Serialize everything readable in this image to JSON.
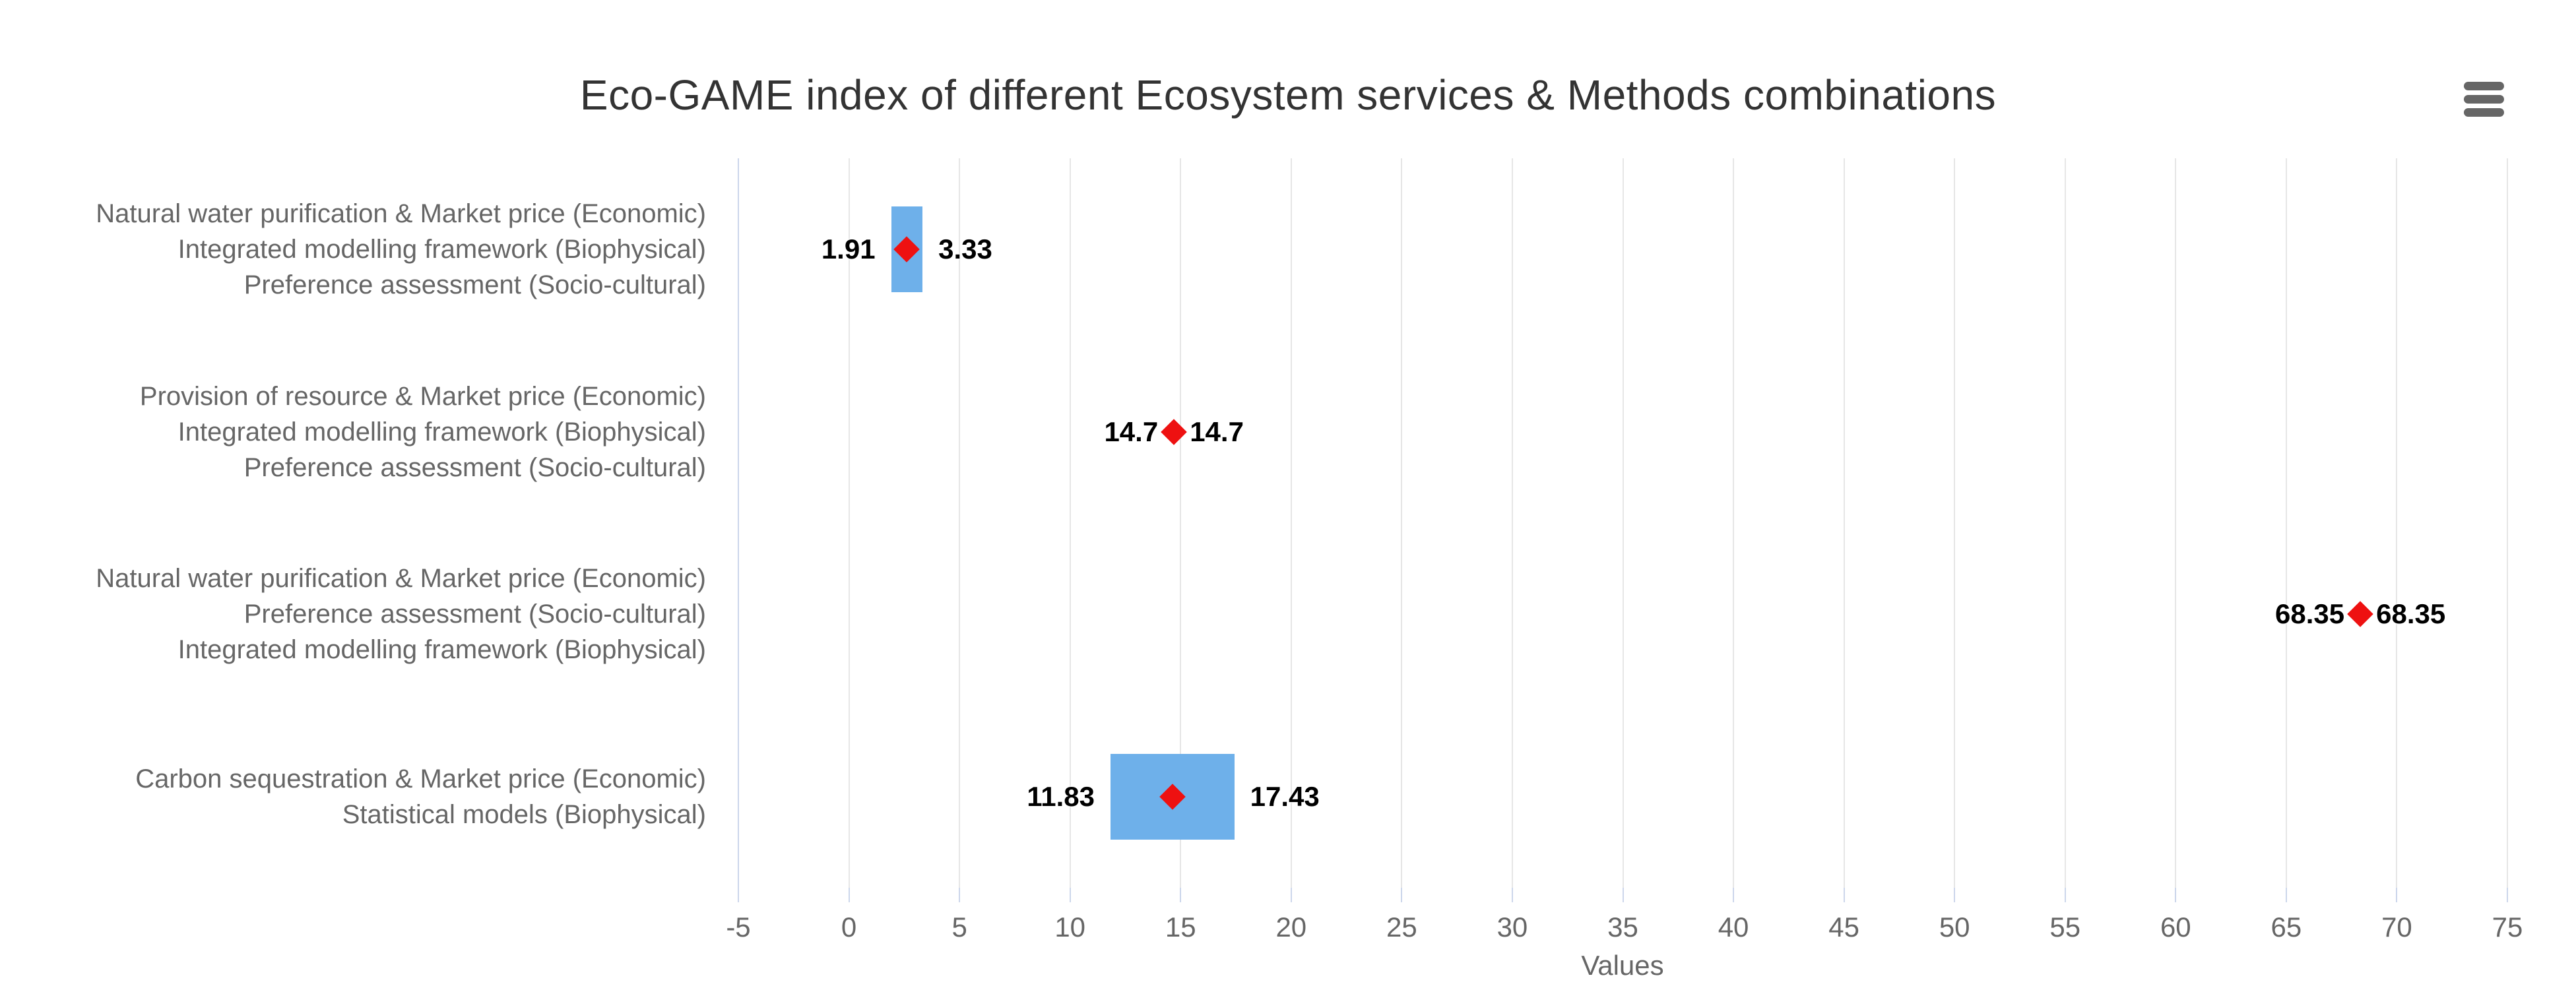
{
  "chart_data": {
    "type": "bar",
    "subtype": "columnrange-with-diamond-markers",
    "inverted": true,
    "title": "Eco-GAME index of different Ecosystem services & Methods combinations",
    "xlabel": "Values",
    "legend": "none",
    "grid": true,
    "value_axis": {
      "min": -5,
      "max": 75,
      "tick_interval": 5,
      "ticks": [
        -5,
        0,
        5,
        10,
        15,
        20,
        25,
        30,
        35,
        40,
        45,
        50,
        55,
        60,
        65,
        70,
        75
      ],
      "title": "Values"
    },
    "categories": [
      {
        "lines": [
          "Natural water purification & Market price (Economic)",
          "Integrated modelling framework (Biophysical)",
          "Preference assessment (Socio-cultural)"
        ]
      },
      {
        "lines": [
          "Provision of resource & Market price (Economic)",
          "Integrated modelling framework (Biophysical)",
          "Preference assessment (Socio-cultural)"
        ]
      },
      {
        "lines": [
          "Natural water purification & Market price (Economic)",
          "Preference assessment (Socio-cultural)",
          "Integrated modelling framework (Biophysical)"
        ]
      },
      {
        "lines": [
          "Carbon sequestration & Market price (Economic)",
          "Statistical models (Biophysical)"
        ]
      }
    ],
    "series": [
      {
        "name": "range",
        "type": "columnrange",
        "color": "#6eb0ea",
        "data": [
          [
            1.91,
            3.33
          ],
          [
            14.7,
            14.7
          ],
          [
            68.35,
            68.35
          ],
          [
            11.83,
            17.43
          ]
        ]
      },
      {
        "name": "midpoint",
        "type": "scatter",
        "marker": "diamond",
        "color": "#ee1111",
        "data": [
          2.62,
          14.7,
          68.35,
          14.63
        ]
      }
    ],
    "data_labels": [
      [
        "1.91",
        "3.33"
      ],
      [
        "14.7",
        "14.7"
      ],
      [
        "68.35",
        "68.35"
      ],
      [
        "11.83",
        "17.43"
      ]
    ],
    "colors": {
      "bar": "#6eb0ea",
      "marker": "#ee1111",
      "gridline": "#e6e6e6",
      "axis_line": "#ccd6eb",
      "text_muted": "#666666",
      "title_text": "#333333"
    }
  },
  "icons": {
    "context_menu": "hamburger-icon"
  }
}
